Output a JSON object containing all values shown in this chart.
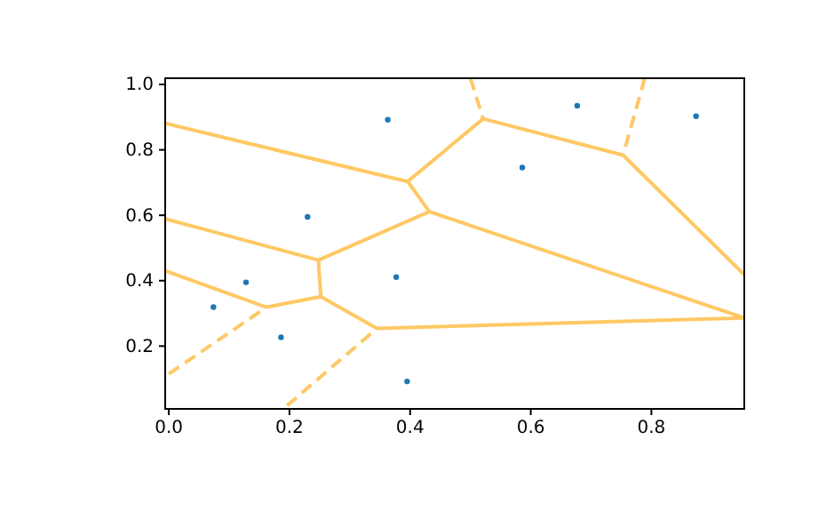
{
  "chart_data": {
    "type": "scatter",
    "xlim": [
      -0.006,
      0.954
    ],
    "ylim": [
      0.008,
      1.019
    ],
    "xticks": [
      {
        "value": 0,
        "label": "0.0"
      },
      0.2,
      0.4,
      0.6,
      0.8
    ],
    "yticks": [
      0.2,
      0.4,
      0.6,
      0.8,
      {
        "value": 1,
        "label": "1.0"
      }
    ],
    "grid": false,
    "series": [
      {
        "marker": "circle",
        "color": "#1f77b4",
        "x": [
          0.074,
          0.128,
          0.186,
          0.23,
          0.363,
          0.377,
          0.395,
          0.586,
          0.677,
          0.874
        ],
        "values": [
          0.319,
          0.395,
          0.227,
          0.595,
          0.892,
          0.411,
          0.092,
          0.746,
          0.935,
          0.903
        ]
      },
      {
        "type": "line",
        "line_style": "solid",
        "color": "#ffc864",
        "x": [
          -0.006,
          0.396
        ],
        "values": [
          0.881,
          0.703
        ]
      },
      {
        "type": "line",
        "line_style": "solid",
        "color": "#ffc864",
        "x": [
          -0.006,
          0.248
        ],
        "values": [
          0.589,
          0.463
        ]
      },
      {
        "type": "line",
        "line_style": "solid",
        "color": "#ffc864",
        "x": [
          -0.006,
          0.162
        ],
        "values": [
          0.43,
          0.319
        ]
      },
      {
        "type": "line",
        "line_style": "solid",
        "color": "#ffc864",
        "x": [
          0.162,
          0.252
        ],
        "values": [
          0.319,
          0.351
        ]
      },
      {
        "type": "line",
        "line_style": "solid",
        "color": "#ffc864",
        "x": [
          0.252,
          0.248
        ],
        "values": [
          0.351,
          0.463
        ]
      },
      {
        "type": "line",
        "line_style": "solid",
        "color": "#ffc864",
        "x": [
          0.252,
          0.345
        ],
        "values": [
          0.351,
          0.254
        ]
      },
      {
        "type": "line",
        "line_style": "solid",
        "color": "#ffc864",
        "x": [
          0.248,
          0.432
        ],
        "values": [
          0.463,
          0.611
        ]
      },
      {
        "type": "line",
        "line_style": "solid",
        "color": "#ffc864",
        "x": [
          0.396,
          0.432
        ],
        "values": [
          0.703,
          0.611
        ]
      },
      {
        "type": "line",
        "line_style": "solid",
        "color": "#ffc864",
        "x": [
          0.396,
          0.521
        ],
        "values": [
          0.703,
          0.895
        ]
      },
      {
        "type": "line",
        "line_style": "solid",
        "color": "#ffc864",
        "x": [
          0.521,
          0.753
        ],
        "values": [
          0.895,
          0.784
        ]
      },
      {
        "type": "line",
        "line_style": "solid",
        "color": "#ffc864",
        "x": [
          0.753,
          0.954
        ],
        "values": [
          0.784,
          0.418
        ]
      },
      {
        "type": "line",
        "line_style": "solid",
        "color": "#ffc864",
        "x": [
          0.432,
          0.954
        ],
        "values": [
          0.611,
          0.286
        ]
      },
      {
        "type": "line",
        "line_style": "solid",
        "color": "#ffc864",
        "x": [
          0.345,
          0.954
        ],
        "values": [
          0.254,
          0.286
        ]
      },
      {
        "type": "line",
        "line_style": "dashed",
        "color": "#ffc864",
        "x": [
          0.0,
          0.162
        ],
        "values": [
          0.115,
          0.319
        ]
      },
      {
        "type": "line",
        "line_style": "dashed",
        "color": "#ffc864",
        "x": [
          0.196,
          0.345
        ],
        "values": [
          0.018,
          0.254
        ]
      },
      {
        "type": "line",
        "line_style": "dashed",
        "color": "#ffc864",
        "x": [
          0.5,
          0.521
        ],
        "values": [
          1.019,
          0.895
        ]
      },
      {
        "type": "line",
        "line_style": "dashed",
        "color": "#ffc864",
        "x": [
          0.789,
          0.753
        ],
        "values": [
          1.019,
          0.784
        ]
      }
    ]
  }
}
